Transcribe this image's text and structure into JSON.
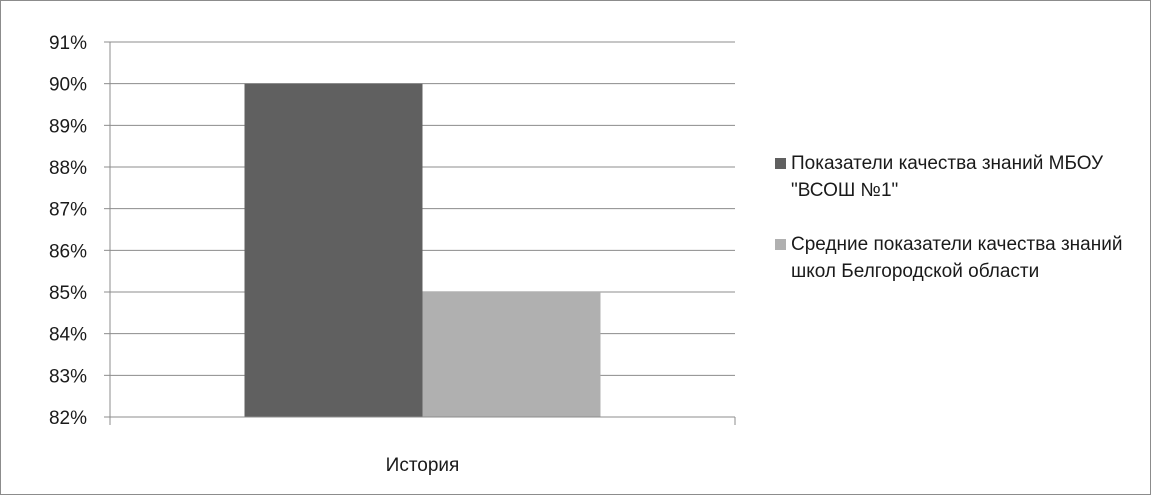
{
  "chart_data": {
    "type": "bar",
    "categories": [
      "История"
    ],
    "series": [
      {
        "name": "Показатели качества знаний МБОУ \"ВСОШ №1\"",
        "values": [
          90
        ],
        "color": "#606060"
      },
      {
        "name": "Средние показатели качества знаний школ Белгородской области",
        "values": [
          85
        ],
        "color": "#b0b0b0"
      }
    ],
    "ylim": [
      82,
      91
    ],
    "yticks": [
      "82%",
      "83%",
      "84%",
      "85%",
      "86%",
      "87%",
      "88%",
      "89%",
      "90%",
      "91%"
    ],
    "y_unit": "%",
    "grid": true,
    "legend_position": "right",
    "title": "",
    "xlabel": "",
    "ylabel": ""
  }
}
